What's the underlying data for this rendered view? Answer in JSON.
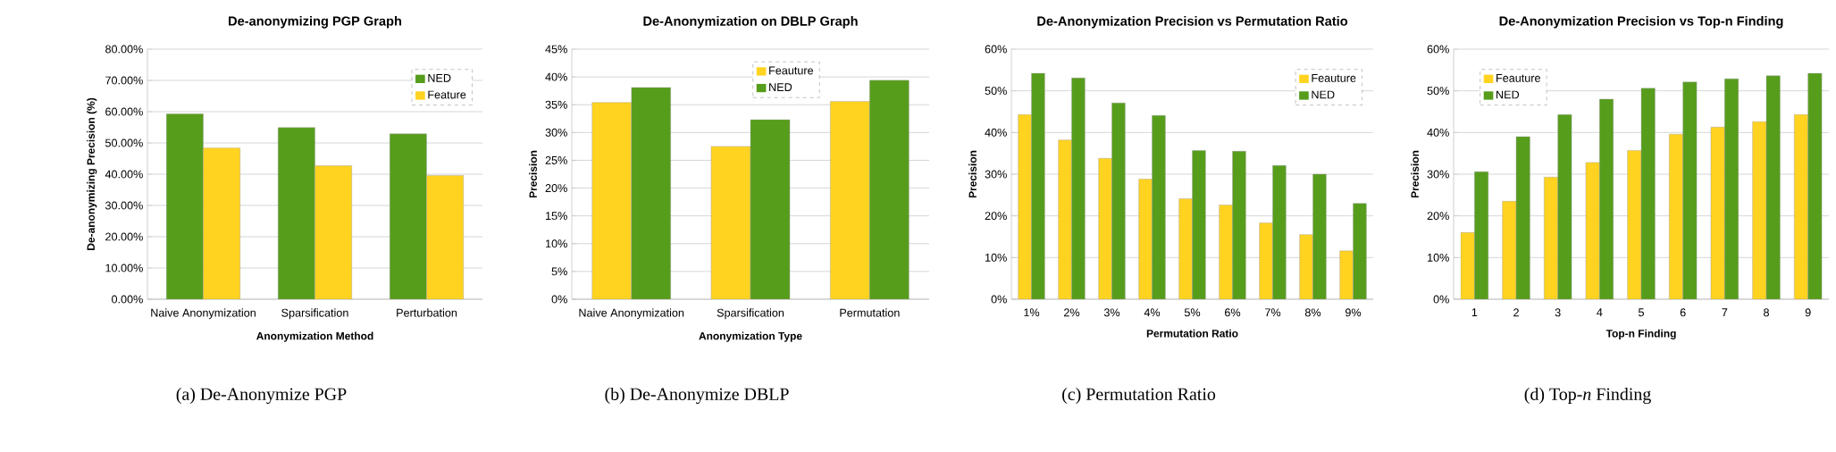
{
  "chart_data": [
    {
      "type": "bar",
      "title": "De-anonymizing PGP Graph",
      "xlabel": "Anonymization Method",
      "ylabel": "De-anonymizing Precision (%)",
      "categories": [
        "Naive Anonymization",
        "Sparsification",
        "Perturbation"
      ],
      "series": [
        {
          "name": "NED",
          "color": "#579d1c",
          "values": [
            59.3,
            54.9,
            52.9
          ]
        },
        {
          "name": "Feature",
          "color": "#ffd320",
          "values": [
            48.4,
            42.7,
            39.6
          ]
        }
      ],
      "ylim": [
        0,
        80
      ],
      "yticks": [
        {
          "value": 0,
          "label": "0.00%"
        },
        {
          "value": 10,
          "label": "10.00%"
        },
        {
          "value": 20,
          "label": "20.00%"
        },
        {
          "value": 30,
          "label": "30.00%"
        },
        {
          "value": 40,
          "label": "40.00%"
        },
        {
          "value": 50,
          "label": "50.00%"
        },
        {
          "value": 60,
          "label": "60.00%"
        },
        {
          "value": 70,
          "label": "70.00%"
        },
        {
          "value": 80,
          "label": "80.00%"
        }
      ],
      "grid": "y",
      "legend": "top right",
      "annotations": [
        "(a) De-Anonymize PGP"
      ]
    },
    {
      "type": "bar",
      "title": "De-Anonymization on DBLP Graph",
      "xlabel": "Anonymization Type",
      "ylabel": "Precision",
      "categories": [
        "Naive Anonymization",
        "Sparsification",
        "Permutation"
      ],
      "series": [
        {
          "name": "Feauture",
          "color": "#ffd320",
          "values": [
            35.4,
            27.5,
            35.6
          ]
        },
        {
          "name": "NED",
          "color": "#579d1c",
          "values": [
            38.1,
            32.3,
            39.4
          ]
        }
      ],
      "ylim": [
        0,
        45
      ],
      "yticks": [
        {
          "value": 0,
          "label": "0%"
        },
        {
          "value": 5,
          "label": "5%"
        },
        {
          "value": 10,
          "label": "10%"
        },
        {
          "value": 15,
          "label": "15%"
        },
        {
          "value": 20,
          "label": "20%"
        },
        {
          "value": 25,
          "label": "25%"
        },
        {
          "value": 30,
          "label": "30%"
        },
        {
          "value": 35,
          "label": "35%"
        },
        {
          "value": 40,
          "label": "40%"
        },
        {
          "value": 45,
          "label": "45%"
        }
      ],
      "grid": "y",
      "legend": "top",
      "annotations": [
        "(b) De-Anonymize DBLP"
      ]
    },
    {
      "type": "bar",
      "title": "De-Anonymization Precision vs Permutation Ratio",
      "xlabel": "Permutation Ratio",
      "ylabel": "Precision",
      "categories": [
        "1%",
        "2%",
        "3%",
        "4%",
        "5%",
        "6%",
        "7%",
        "8%",
        "9%"
      ],
      "series": [
        {
          "name": "Feauture",
          "color": "#ffd320",
          "values": [
            44.3,
            38.2,
            33.8,
            28.8,
            24.1,
            22.6,
            18.3,
            15.5,
            11.6
          ]
        },
        {
          "name": "NED",
          "color": "#579d1c",
          "values": [
            54.2,
            53.1,
            47.1,
            44.1,
            35.7,
            35.5,
            32.1,
            30.0,
            23.0
          ]
        }
      ],
      "ylim": [
        0,
        60
      ],
      "yticks": [
        {
          "value": 0,
          "label": "0%"
        },
        {
          "value": 10,
          "label": "10%"
        },
        {
          "value": 20,
          "label": "20%"
        },
        {
          "value": 30,
          "label": "30%"
        },
        {
          "value": 40,
          "label": "40%"
        },
        {
          "value": 50,
          "label": "50%"
        },
        {
          "value": 60,
          "label": "60%"
        }
      ],
      "grid": "y",
      "legend": "top right",
      "annotations": [
        "(c) Permutation Ratio"
      ]
    },
    {
      "type": "bar",
      "title": "De-Anonymization Precision vs Top-n Finding",
      "xlabel": "Top-n Finding",
      "ylabel": "Precision",
      "categories": [
        "1",
        "2",
        "3",
        "4",
        "5",
        "6",
        "7",
        "8",
        "9"
      ],
      "series": [
        {
          "name": "Feauture",
          "color": "#ffd320",
          "values": [
            16.0,
            23.5,
            29.3,
            32.8,
            35.7,
            39.6,
            41.3,
            42.6,
            44.3
          ]
        },
        {
          "name": "NED",
          "color": "#579d1c",
          "values": [
            30.6,
            39.0,
            44.3,
            48.0,
            50.6,
            52.1,
            52.9,
            53.6,
            54.2
          ]
        }
      ],
      "ylim": [
        0,
        60
      ],
      "yticks": [
        {
          "value": 0,
          "label": "0%"
        },
        {
          "value": 10,
          "label": "10%"
        },
        {
          "value": 20,
          "label": "20%"
        },
        {
          "value": 30,
          "label": "30%"
        },
        {
          "value": 40,
          "label": "40%"
        },
        {
          "value": 50,
          "label": "50%"
        },
        {
          "value": 60,
          "label": "60%"
        }
      ],
      "grid": "y",
      "legend": "top left",
      "annotations": [
        "(d) Top-*n* Finding"
      ]
    }
  ]
}
